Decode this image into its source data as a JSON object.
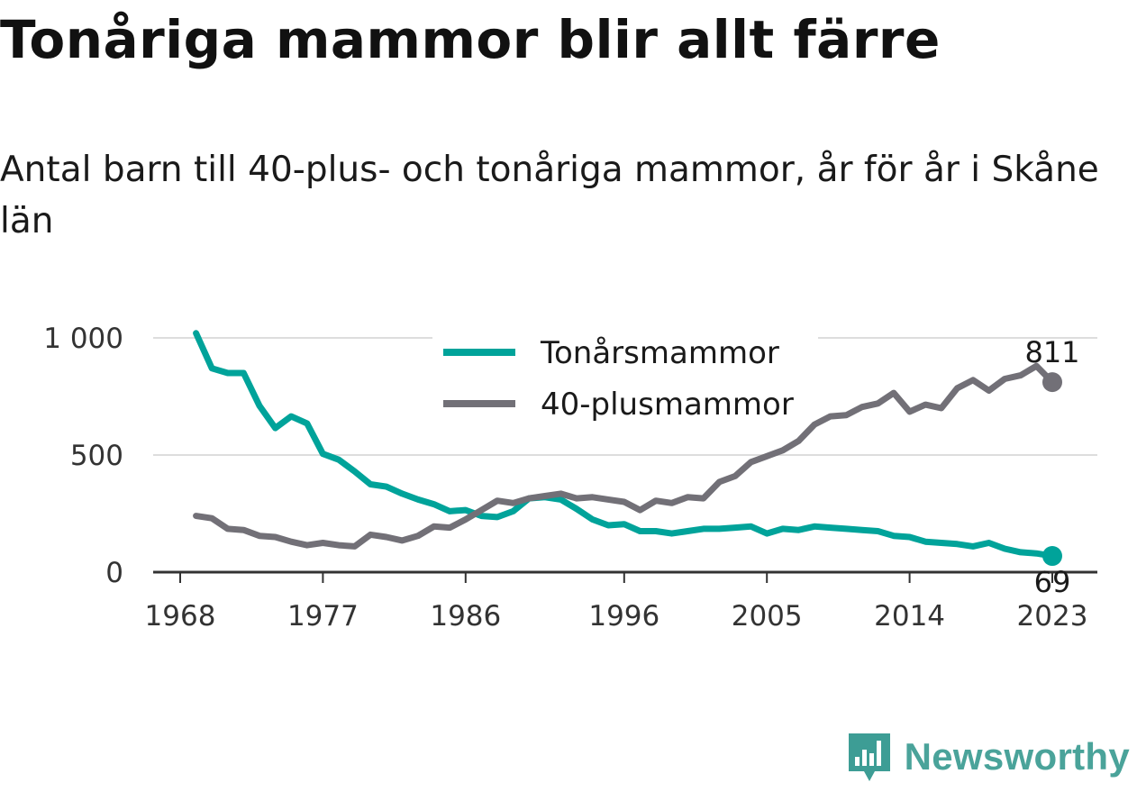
{
  "header": {
    "title": "Tonåriga mammor blir allt färre",
    "subtitle": "Antal barn till 40-plus- och tonåriga mammor, år för år i Skåne län"
  },
  "brand": {
    "name": "Newsworthy",
    "icon": "bar-chart-logo-icon",
    "color": "#3d9d95"
  },
  "chart_data": {
    "type": "line",
    "x_ticks": [
      "1968",
      "1977",
      "1986",
      "1996",
      "2005",
      "2014",
      "2023"
    ],
    "y_ticks": [
      "0",
      "500",
      "1 000"
    ],
    "ylim": [
      0,
      1000
    ],
    "xlim": [
      1968,
      2023
    ],
    "grid": true,
    "legend": "top-right",
    "x": [
      1969,
      1970,
      1971,
      1972,
      1973,
      1974,
      1975,
      1976,
      1977,
      1978,
      1979,
      1980,
      1981,
      1982,
      1983,
      1984,
      1985,
      1986,
      1987,
      1988,
      1989,
      1990,
      1991,
      1992,
      1993,
      1994,
      1995,
      1996,
      1997,
      1998,
      1999,
      2000,
      2001,
      2002,
      2003,
      2004,
      2005,
      2006,
      2007,
      2008,
      2009,
      2010,
      2011,
      2012,
      2013,
      2014,
      2015,
      2016,
      2017,
      2018,
      2019,
      2020,
      2021,
      2022,
      2023
    ],
    "series": [
      {
        "name": "Tonårsmammor",
        "color": "#00a39a",
        "values": [
          1020,
          870,
          850,
          850,
          710,
          615,
          665,
          635,
          505,
          480,
          430,
          375,
          365,
          335,
          310,
          290,
          260,
          265,
          240,
          235,
          260,
          315,
          320,
          310,
          270,
          225,
          200,
          205,
          175,
          175,
          165,
          175,
          185,
          185,
          190,
          195,
          165,
          185,
          180,
          195,
          190,
          185,
          180,
          175,
          155,
          150,
          130,
          125,
          120,
          110,
          125,
          100,
          85,
          80,
          69
        ],
        "end_label": "69"
      },
      {
        "name": "40-plusmammor",
        "color": "#727077",
        "values": [
          240,
          230,
          185,
          180,
          155,
          150,
          130,
          115,
          125,
          115,
          110,
          160,
          150,
          135,
          155,
          195,
          190,
          225,
          265,
          305,
          295,
          315,
          325,
          335,
          315,
          320,
          310,
          300,
          265,
          305,
          295,
          320,
          315,
          385,
          410,
          470,
          495,
          520,
          560,
          630,
          665,
          670,
          705,
          720,
          765,
          685,
          715,
          700,
          785,
          820,
          775,
          825,
          840,
          880,
          811
        ],
        "end_label": "811"
      }
    ]
  }
}
